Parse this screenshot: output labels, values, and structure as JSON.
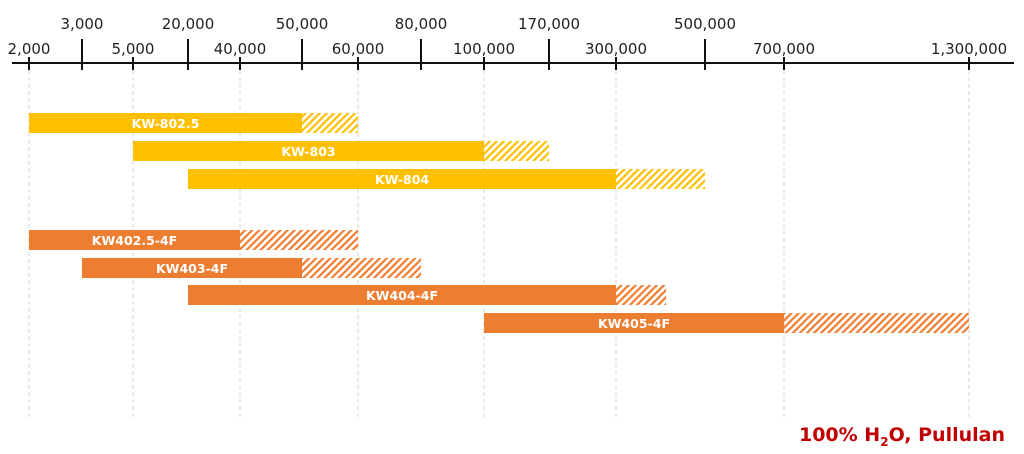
{
  "chart_data": {
    "type": "bar",
    "orientation": "horizontal-range",
    "axis": {
      "position": "top",
      "scale": "nonlinear",
      "lower_ticks": [
        {
          "value": 2000,
          "label": "2,000"
        },
        {
          "value": 5000,
          "label": "5,000"
        },
        {
          "value": 40000,
          "label": "40,000"
        },
        {
          "value": 60000,
          "label": "60,000"
        },
        {
          "value": 100000,
          "label": "100,000"
        },
        {
          "value": 300000,
          "label": "300,000"
        },
        {
          "value": 700000,
          "label": "700,000"
        },
        {
          "value": 1300000,
          "label": "1,300,000"
        }
      ],
      "upper_ticks": [
        {
          "value": 3000,
          "label": "3,000"
        },
        {
          "value": 20000,
          "label": "20,000"
        },
        {
          "value": 50000,
          "label": "50,000"
        },
        {
          "value": 80000,
          "label": "80,000"
        },
        {
          "value": 170000,
          "label": "170,000"
        },
        {
          "value": 500000,
          "label": "500,000"
        }
      ],
      "grid": true
    },
    "series": [
      {
        "name": "KW-802.5",
        "start": 2000,
        "solid_end": 50000,
        "hatched_end": 60000,
        "color": "#FFC000"
      },
      {
        "name": "KW-803",
        "start": 5000,
        "solid_end": 100000,
        "hatched_end": 170000,
        "color": "#FFC000"
      },
      {
        "name": "KW-804",
        "start": 20000,
        "solid_end": 300000,
        "hatched_end": 500000,
        "color": "#FFC000"
      },
      {
        "name": "KW402.5-4F",
        "start": 2000,
        "solid_end": 40000,
        "hatched_end": 60000,
        "color": "#ED7D31"
      },
      {
        "name": "KW403-4F",
        "start": 3000,
        "solid_end": 50000,
        "hatched_end": 80000,
        "color": "#ED7D31"
      },
      {
        "name": "KW404-4F",
        "start": 20000,
        "solid_end": 300000,
        "hatched_end": 400000,
        "color": "#ED7D31"
      },
      {
        "name": "KW405-4F",
        "start": 100000,
        "solid_end": 700000,
        "hatched_end": 1300000,
        "color": "#ED7D31"
      }
    ]
  },
  "footnote": {
    "pre": "100% H",
    "sub": "2",
    "post": "O, Pullulan",
    "color": "#C00000"
  }
}
